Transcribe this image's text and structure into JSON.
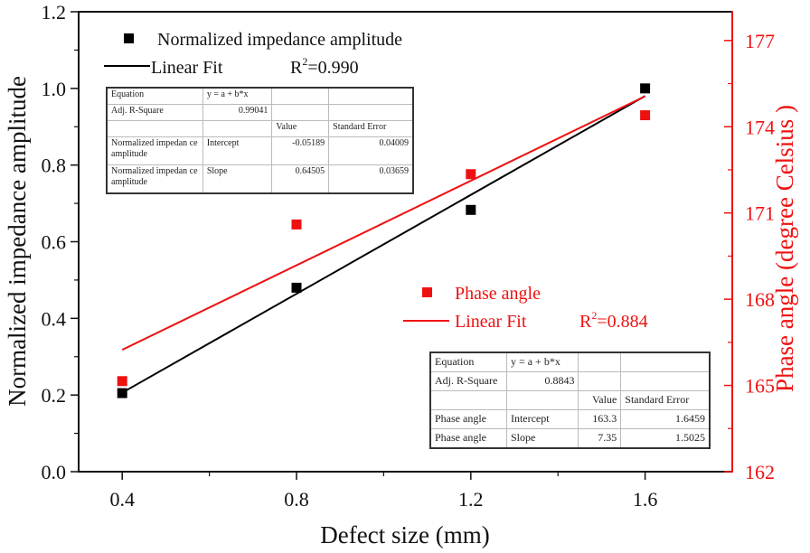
{
  "chart_data": {
    "type": "scatter",
    "title": "",
    "xlabel": "Defect size (mm)",
    "ylabel": "Normalized impedance amplitude",
    "y2label": "Phase angle (degree Celsius )",
    "xlim": [
      0.3,
      1.8
    ],
    "ylim": [
      0.0,
      1.2
    ],
    "y2lim": [
      162,
      178
    ],
    "x_ticks": [
      0.4,
      0.8,
      1.2,
      1.6
    ],
    "x_tick_labels": [
      "0.4",
      "0.8",
      "1.2",
      "1.6"
    ],
    "y_ticks": [
      0.0,
      0.2,
      0.4,
      0.6,
      0.8,
      1.0,
      1.2
    ],
    "y_tick_labels": [
      "0.0",
      "0.2",
      "0.4",
      "0.6",
      "0.8",
      "1.0",
      "1.2"
    ],
    "y2_ticks": [
      162,
      165,
      168,
      171,
      174,
      177
    ],
    "y2_tick_labels": [
      "162",
      "165",
      "168",
      "171",
      "174",
      "177"
    ],
    "grid": false,
    "series": [
      {
        "name": "Normalized impedance amplitude",
        "axis": "left",
        "color": "#000000",
        "marker": "square",
        "x": [
          0.4,
          0.8,
          1.2,
          1.6
        ],
        "y": [
          0.205,
          0.48,
          0.683,
          1.0
        ],
        "fit": {
          "label": "Linear Fit",
          "r2_label": "R",
          "r2_sup": "2",
          "r2_value": "=0.990",
          "intercept": -0.05189,
          "slope": 0.64505,
          "x_range": [
            0.4,
            1.6
          ]
        }
      },
      {
        "name": "Phase angle",
        "axis": "right",
        "color": "#ee1111",
        "marker": "square",
        "x": [
          0.4,
          0.8,
          1.2,
          1.6
        ],
        "y": [
          165.15,
          170.6,
          172.35,
          174.4
        ],
        "fit": {
          "label": "Linear Fit",
          "r2_label": "R",
          "r2_sup": "2",
          "r2_value": "=0.884",
          "intercept": 163.3,
          "slope": 7.35,
          "x_range": [
            0.4,
            1.6
          ]
        }
      }
    ],
    "legend": [
      {
        "position": "top-left",
        "series": 0
      },
      {
        "position": "center-right",
        "series": 1
      }
    ]
  },
  "tables": {
    "amplitude": {
      "rows": [
        [
          "Equation",
          "y = a + b*x",
          "",
          ""
        ],
        [
          "Adj. R-Square",
          "0.99041",
          "",
          ""
        ],
        [
          "",
          "",
          "Value",
          "Standard Error"
        ],
        [
          "Normalized impedan ce amplitude",
          "Intercept",
          "-0.05189",
          "0.04009"
        ],
        [
          "Normalized impedan ce amplitude",
          "Slope",
          "0.64505",
          "0.03659"
        ]
      ]
    },
    "phase": {
      "rows": [
        [
          "Equation",
          "y = a + b*x",
          "",
          ""
        ],
        [
          "Adj. R-Square",
          "0.8843",
          "",
          ""
        ],
        [
          "",
          "",
          "Value",
          "Standard Error"
        ],
        [
          "Phase angle",
          "Intercept",
          "163.3",
          "1.6459"
        ],
        [
          "Phase angle",
          "Slope",
          "7.35",
          "1.5025"
        ]
      ]
    }
  }
}
